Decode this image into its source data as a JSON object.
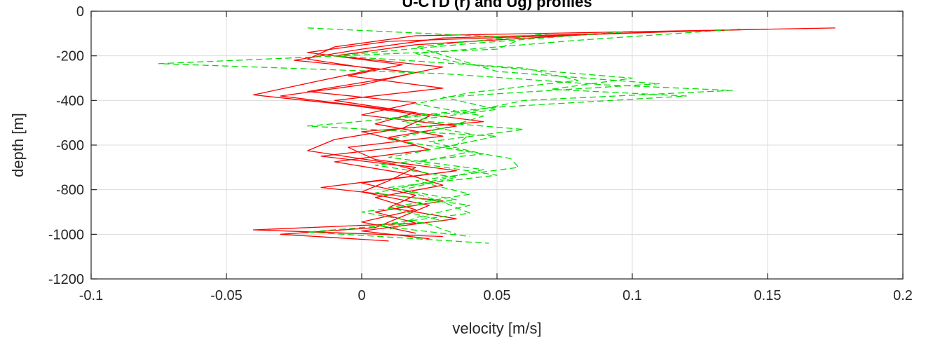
{
  "chart_data": {
    "type": "line",
    "title": "U-CTD (r) and Ug) profiles",
    "xlabel": "velocity [m/s]",
    "ylabel": "depth [m]",
    "xlim": [
      -0.1,
      0.2
    ],
    "ylim": [
      -1200,
      0
    ],
    "xticks": [
      -0.1,
      -0.05,
      0,
      0.05,
      0.1,
      0.15,
      0.2
    ],
    "xtick_labels": [
      "-0.1",
      "-0.05",
      "0",
      "0.05",
      "0.1",
      "0.15",
      "0.2"
    ],
    "yticks": [
      0,
      -200,
      -400,
      -600,
      -800,
      -1000,
      -1200
    ],
    "ytick_labels": [
      "0",
      "-200",
      "-400",
      "-600",
      "-800",
      "-1000",
      "-1200"
    ],
    "grid": true,
    "series": [
      {
        "color": "#ff0000",
        "dashed": false,
        "depth": [
          -75,
          -110,
          -160,
          -215,
          -260,
          -310,
          -375,
          -420,
          -470,
          -525,
          -575,
          -625,
          -680,
          -730,
          -790,
          -850,
          -900,
          -950,
          -980,
          -1010
        ],
        "values": [
          0.175,
          0.02,
          -0.01,
          -0.02,
          0.005,
          -0.015,
          -0.04,
          -0.005,
          0.025,
          0.015,
          -0.01,
          -0.02,
          0.01,
          0.025,
          -0.015,
          0.03,
          0.005,
          0.02,
          -0.04,
          0.03
        ]
      },
      {
        "color": "#ff0000",
        "dashed": false,
        "depth": [
          -80,
          -120,
          -170,
          -220,
          -275,
          -330,
          -380,
          -440,
          -495,
          -540,
          -600,
          -650,
          -700,
          -760,
          -810,
          -870,
          -920,
          -970,
          -1000,
          -1030
        ],
        "values": [
          0.15,
          0.03,
          0.0,
          -0.025,
          0.02,
          0.0,
          -0.03,
          0.01,
          0.045,
          0.0,
          0.02,
          -0.015,
          0.02,
          0.01,
          0.0,
          0.025,
          0.015,
          0.005,
          -0.03,
          0.01
        ]
      },
      {
        "color": "#ff0000",
        "dashed": false,
        "depth": [
          -90,
          -135,
          -185,
          -240,
          -290,
          -345,
          -400,
          -455,
          -505,
          -560,
          -610,
          -665,
          -715,
          -770,
          -825,
          -880,
          -930,
          -985,
          -1020
        ],
        "values": [
          0.12,
          0.01,
          -0.02,
          0.015,
          -0.005,
          0.03,
          -0.01,
          0.02,
          0.005,
          0.03,
          -0.005,
          0.005,
          0.035,
          0.0,
          0.02,
          0.01,
          0.035,
          0.0,
          0.025
        ]
      },
      {
        "color": "#ff0000",
        "dashed": false,
        "depth": [
          -100,
          -150,
          -200,
          -250,
          -300,
          -360,
          -410,
          -465,
          -515,
          -565,
          -620,
          -675,
          -725,
          -780,
          -835,
          -890,
          -945,
          -995
        ],
        "values": [
          0.09,
          0.02,
          -0.01,
          0.03,
          0.01,
          -0.02,
          0.02,
          0.0,
          0.035,
          0.01,
          0.025,
          -0.01,
          0.015,
          0.03,
          0.005,
          0.02,
          0.0,
          0.02
        ]
      },
      {
        "color": "#00e000",
        "dashed": true,
        "depth": [
          -75,
          -120,
          -170,
          -235,
          -280,
          -330,
          -355,
          -400,
          -450,
          -515,
          -560,
          -610,
          -660,
          -700,
          -760,
          -820,
          -880,
          -940,
          -990,
          -1040
        ],
        "values": [
          -0.02,
          0.06,
          0.05,
          -0.075,
          0.03,
          0.09,
          0.137,
          0.06,
          0.04,
          -0.02,
          0.05,
          0.03,
          0.055,
          0.058,
          0.02,
          0.04,
          0.01,
          0.03,
          -0.02,
          0.047
        ]
      },
      {
        "color": "#00e000",
        "dashed": true,
        "depth": [
          -80,
          -130,
          -190,
          -240,
          -300,
          -350,
          -380,
          -430,
          -480,
          -530,
          -585,
          -640,
          -690,
          -745,
          -800,
          -855,
          -905,
          -960,
          -1010
        ],
        "values": [
          0.14,
          0.08,
          0.02,
          0.04,
          0.1,
          0.07,
          0.12,
          0.05,
          0.01,
          0.06,
          0.025,
          0.045,
          0.005,
          0.035,
          0.015,
          0.03,
          0.04,
          0.005,
          0.04
        ]
      },
      {
        "color": "#00e000",
        "dashed": true,
        "depth": [
          -90,
          -145,
          -200,
          -255,
          -310,
          -365,
          -415,
          -470,
          -525,
          -575,
          -630,
          -680,
          -735,
          -790,
          -845,
          -900,
          -955,
          -1000
        ],
        "values": [
          0.1,
          0.04,
          -0.01,
          0.06,
          0.08,
          0.04,
          0.02,
          0.045,
          0.03,
          0.01,
          0.04,
          0.02,
          0.05,
          0.01,
          0.035,
          0.0,
          0.025,
          0.035
        ]
      },
      {
        "color": "#00e000",
        "dashed": true,
        "depth": [
          -100,
          -160,
          -215,
          -270,
          -325,
          -385,
          -440,
          -495,
          -550,
          -600,
          -655,
          -710,
          -765,
          -815,
          -870,
          -925,
          -980
        ],
        "values": [
          0.07,
          0.02,
          0.035,
          0.05,
          0.11,
          0.03,
          0.05,
          0.015,
          0.04,
          0.035,
          0.01,
          0.045,
          0.025,
          0.005,
          0.04,
          0.02,
          0.01
        ]
      }
    ]
  }
}
